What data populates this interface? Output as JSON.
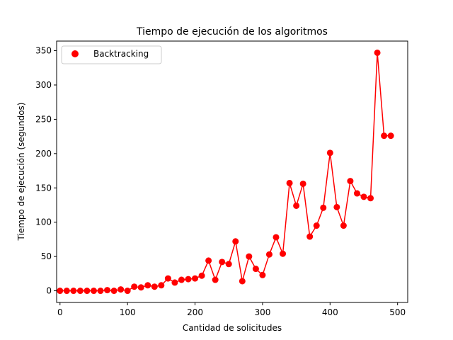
{
  "chart_data": {
    "type": "line",
    "title": "Tiempo de ejecución de los algoritmos",
    "xlabel": "Cantidad de solicitudes",
    "ylabel": "Tiempo de ejecución (segundos)",
    "xlim": [
      -5,
      515
    ],
    "ylim": [
      -17,
      364
    ],
    "xticks": [
      0,
      100,
      200,
      300,
      400,
      500
    ],
    "yticks": [
      0,
      50,
      100,
      150,
      200,
      250,
      300,
      350
    ],
    "grid": false,
    "legend_position": "upper-left",
    "series": [
      {
        "name": "Backtracking",
        "color": "#ff0000",
        "marker": "circle",
        "x": [
          0,
          10,
          20,
          30,
          40,
          50,
          60,
          70,
          80,
          90,
          100,
          110,
          120,
          130,
          140,
          150,
          160,
          170,
          180,
          190,
          200,
          210,
          220,
          230,
          240,
          250,
          260,
          270,
          280,
          290,
          300,
          310,
          320,
          330,
          340,
          350,
          360,
          370,
          380,
          390,
          400,
          410,
          420,
          430,
          440,
          450,
          460,
          470,
          480,
          490
        ],
        "y": [
          0,
          0,
          0,
          0,
          0,
          0,
          0,
          1,
          0,
          2,
          0,
          6,
          5,
          8,
          6,
          8,
          18,
          12,
          16,
          17,
          18,
          22,
          44,
          16,
          42,
          39,
          72,
          14,
          50,
          32,
          23,
          53,
          78,
          54,
          157,
          124,
          156,
          79,
          95,
          121,
          201,
          122,
          95,
          160,
          142,
          137,
          135,
          347,
          226,
          226
        ]
      }
    ]
  }
}
